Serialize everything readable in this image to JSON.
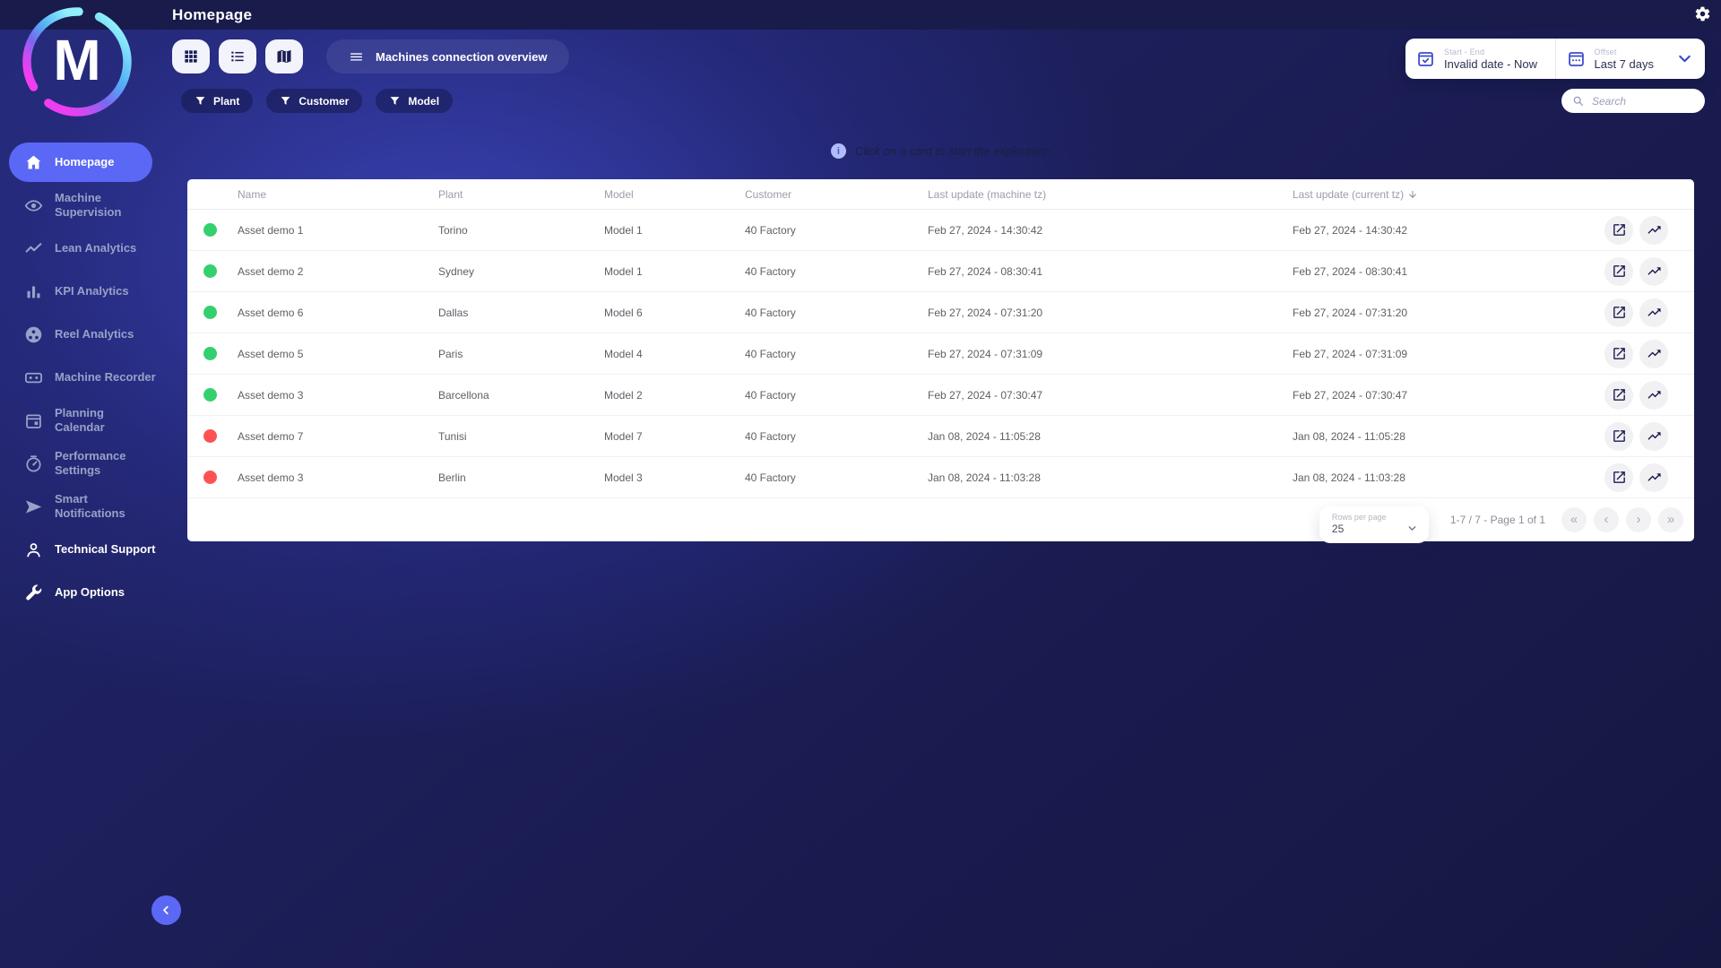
{
  "topbar": {
    "title": "Homepage"
  },
  "logo": {
    "letter": "M"
  },
  "sidebar": {
    "items": [
      {
        "id": "homepage",
        "label": "Homepage",
        "icon": "home",
        "active": true,
        "bright": true
      },
      {
        "id": "machine-supervision",
        "label": "Machine Supervision",
        "icon": "eye",
        "active": false,
        "bright": false
      },
      {
        "id": "lean-analytics",
        "label": "Lean Analytics",
        "icon": "trend",
        "active": false,
        "bright": false
      },
      {
        "id": "kpi-analytics",
        "label": "KPI Analytics",
        "icon": "bars",
        "active": false,
        "bright": false
      },
      {
        "id": "reel-analytics",
        "label": "Reel Analytics",
        "icon": "reel",
        "active": false,
        "bright": false
      },
      {
        "id": "machine-recorder",
        "label": "Machine Recorder",
        "icon": "recorder",
        "active": false,
        "bright": false
      },
      {
        "id": "planning-calendar",
        "label": "Planning Calendar",
        "icon": "calendar",
        "active": false,
        "bright": false
      },
      {
        "id": "performance-settings",
        "label": "Performance Settings",
        "icon": "gauge",
        "active": false,
        "bright": false
      },
      {
        "id": "smart-notifications",
        "label": "Smart Notifications",
        "icon": "send",
        "active": false,
        "bright": false
      },
      {
        "id": "technical-support",
        "label": "Technical Support",
        "icon": "person",
        "active": false,
        "bright": true
      },
      {
        "id": "app-options",
        "label": "App Options",
        "icon": "wrench",
        "active": false,
        "bright": true
      }
    ]
  },
  "header": {
    "view_buttons": [
      {
        "id": "grid",
        "icon": "grid"
      },
      {
        "id": "list",
        "icon": "list"
      },
      {
        "id": "map",
        "icon": "map"
      }
    ],
    "overview_button_label": "Machines connection overview",
    "filters": [
      {
        "id": "plant",
        "label": "Plant"
      },
      {
        "id": "customer",
        "label": "Customer"
      },
      {
        "id": "model",
        "label": "Model"
      }
    ],
    "date_range": {
      "label": "Start - End",
      "value": "Invalid date - Now"
    },
    "offset": {
      "label": "Offset",
      "value": "Last 7 days"
    },
    "search": {
      "placeholder": "Search"
    }
  },
  "info_banner": {
    "icon_glyph": "i",
    "text": "Click on a card to start the exploration"
  },
  "table": {
    "columns": [
      "Name",
      "Plant",
      "Model",
      "Customer",
      "Last update (machine tz)",
      "Last update (current tz)"
    ],
    "sorted_column_index": 5,
    "rows": [
      {
        "status": "online",
        "name": "Asset demo 1",
        "plant": "Torino",
        "model": "Model 1",
        "customer": "40 Factory",
        "last_update_machine": "Feb 27, 2024 - 14:30:42",
        "last_update_current": "Feb 27, 2024 - 14:30:42"
      },
      {
        "status": "online",
        "name": "Asset demo 2",
        "plant": "Sydney",
        "model": "Model 1",
        "customer": "40 Factory",
        "last_update_machine": "Feb 27, 2024 - 08:30:41",
        "last_update_current": "Feb 27, 2024 - 08:30:41"
      },
      {
        "status": "online",
        "name": "Asset demo 6",
        "plant": "Dallas",
        "model": "Model 6",
        "customer": "40 Factory",
        "last_update_machine": "Feb 27, 2024 - 07:31:20",
        "last_update_current": "Feb 27, 2024 - 07:31:20"
      },
      {
        "status": "online",
        "name": "Asset demo 5",
        "plant": "Paris",
        "model": "Model 4",
        "customer": "40 Factory",
        "last_update_machine": "Feb 27, 2024 - 07:31:09",
        "last_update_current": "Feb 27, 2024 - 07:31:09"
      },
      {
        "status": "online",
        "name": "Asset demo 3",
        "plant": "Barcellona",
        "model": "Model 2",
        "customer": "40 Factory",
        "last_update_machine": "Feb 27, 2024 - 07:30:47",
        "last_update_current": "Feb 27, 2024 - 07:30:47"
      },
      {
        "status": "offline",
        "name": "Asset demo 7",
        "plant": "Tunisi",
        "model": "Model 7",
        "customer": "40 Factory",
        "last_update_machine": "Jan 08, 2024 - 11:05:28",
        "last_update_current": "Jan 08, 2024 - 11:05:28"
      },
      {
        "status": "offline",
        "name": "Asset demo 3",
        "plant": "Berlin",
        "model": "Model 3",
        "customer": "40 Factory",
        "last_update_machine": "Jan 08, 2024 - 11:03:28",
        "last_update_current": "Jan 08, 2024 - 11:03:28"
      }
    ]
  },
  "pagination": {
    "rows_per_page_label": "Rows per page",
    "rows_per_page_value": "25",
    "range_text": "1-7 / 7 - Page 1 of 1",
    "first_glyph": "«",
    "prev_glyph": "‹",
    "next_glyph": "›",
    "last_glyph": "»"
  },
  "colors": {
    "accent": "#5a68f5",
    "status_online": "#35d06e",
    "status_offline": "#ff5252",
    "topbar_bg": "#191b4b",
    "header_blue": "#2b3193"
  }
}
